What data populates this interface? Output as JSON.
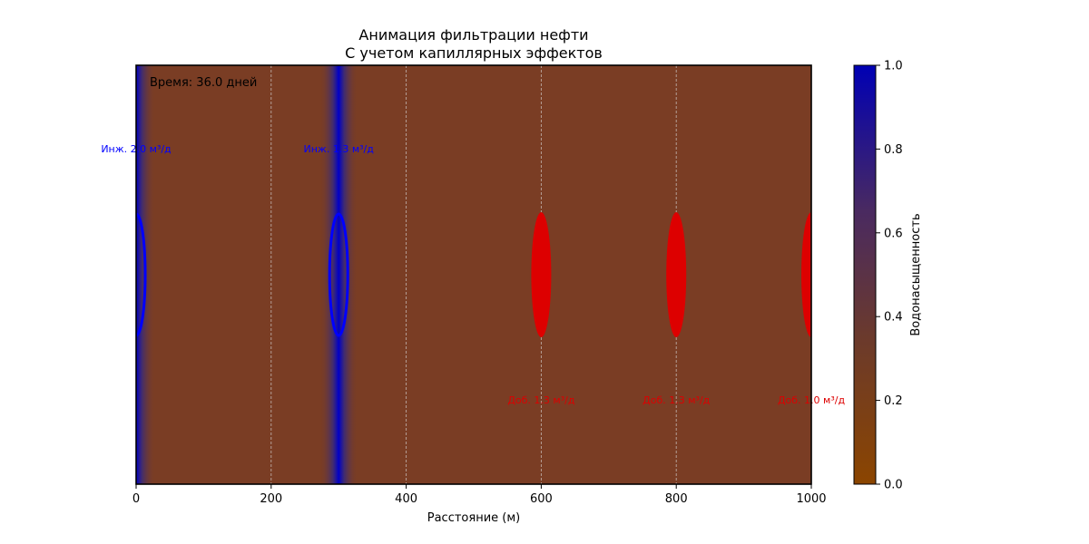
{
  "chart_data": {
    "type": "heatmap",
    "title": "Анимация фильтрации нефти",
    "subtitle": "С учетом капиллярных эффектов",
    "xlabel": "Расстояние (м)",
    "xlim": [
      0,
      1000
    ],
    "xticks": [
      "0",
      "200",
      "400",
      "600",
      "800",
      "1000"
    ],
    "xtick_values": [
      0,
      200,
      400,
      600,
      800,
      1000
    ],
    "grid_x": [
      200,
      400,
      600,
      800
    ],
    "time_label": "Время: 36.0 дней",
    "background_saturation": 0.35,
    "saturation_fronts": [
      {
        "center": 0,
        "width": 28
      },
      {
        "center": 300,
        "width": 28
      }
    ],
    "colorbar": {
      "label": "Водонасыщенность",
      "range": [
        0,
        1
      ],
      "ticks": [
        "0.0",
        "0.2",
        "0.4",
        "0.6",
        "0.8",
        "1.0"
      ],
      "tick_values": [
        0,
        0.2,
        0.4,
        0.6,
        0.8,
        1.0
      ],
      "colors": [
        "#8b4500",
        "#6b3a4a",
        "#0000b4"
      ]
    },
    "wells": [
      {
        "type": "injector",
        "x": 0,
        "label": "Инж. 2.0 м³/д",
        "color": "#0000ff"
      },
      {
        "type": "injector",
        "x": 300,
        "label": "Инж. 1.3 м³/д",
        "color": "#0000ff"
      },
      {
        "type": "producer",
        "x": 600,
        "label": "Доб. 1.3 м³/д",
        "color": "#dd0000"
      },
      {
        "type": "producer",
        "x": 800,
        "label": "Доб. 1.3 м³/д",
        "color": "#dd0000"
      },
      {
        "type": "producer",
        "x": 1000,
        "label": "Доб. 1.0 м³/д",
        "color": "#dd0000"
      }
    ]
  }
}
